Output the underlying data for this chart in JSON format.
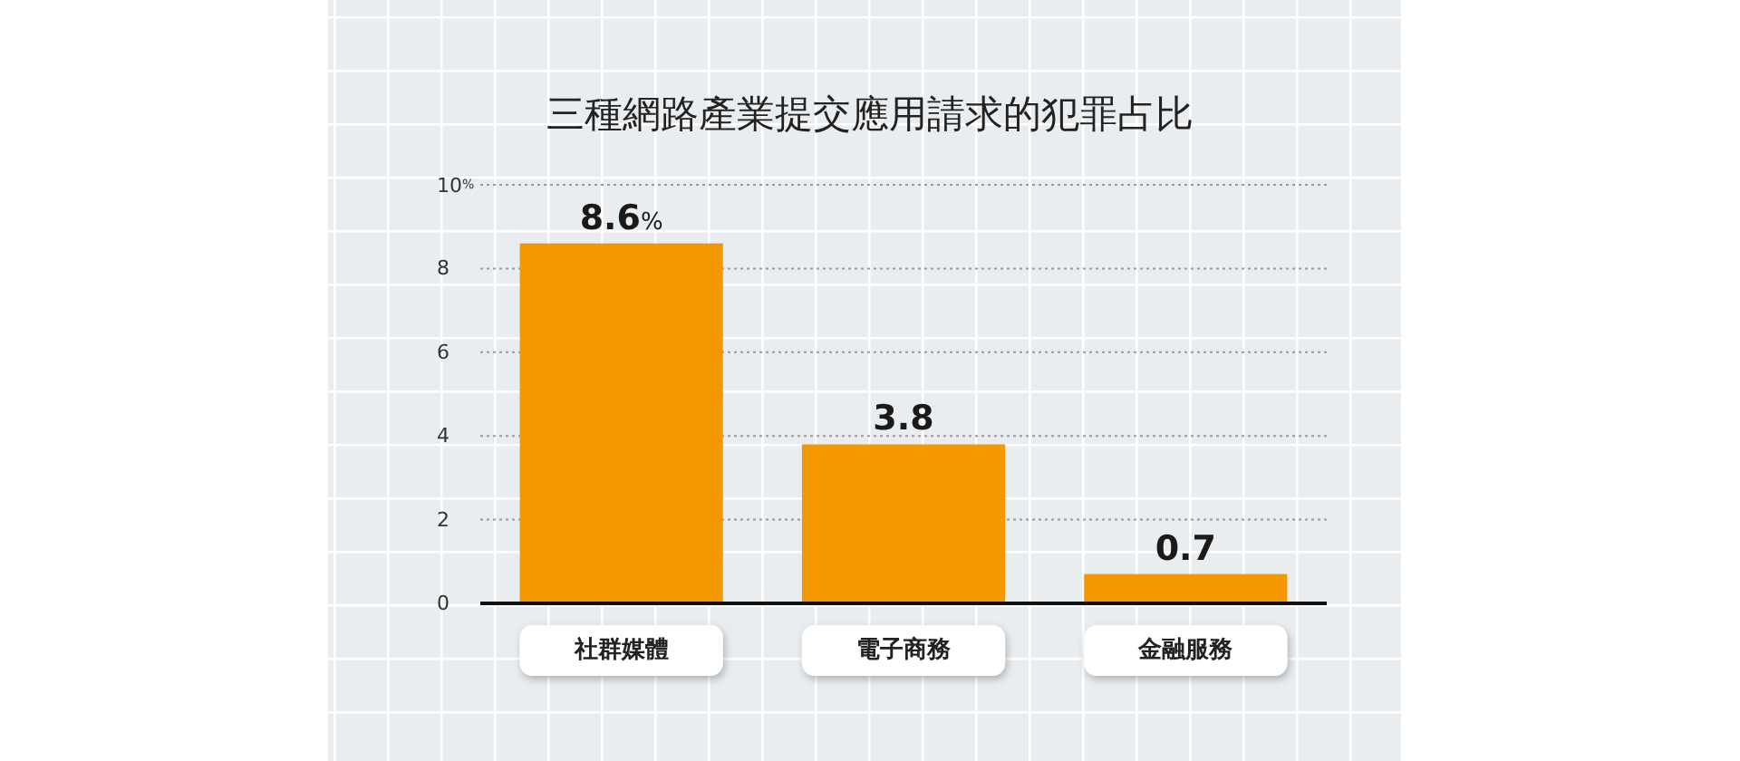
{
  "chart_data": {
    "type": "bar",
    "title": "三種網路產業提交應用請求的犯罪占比",
    "categories": [
      "社群媒體",
      "電子商務",
      "金融服務"
    ],
    "values": [
      8.6,
      3.8,
      0.7
    ],
    "color": "#f39800",
    "value_labels": [
      "8.6%",
      "3.8",
      "0.7"
    ],
    "ylim": [
      0,
      10
    ],
    "yticks": [
      0,
      2,
      4,
      6,
      8,
      {
        "value": 10,
        "label": "10%"
      }
    ],
    "grid": "y"
  }
}
